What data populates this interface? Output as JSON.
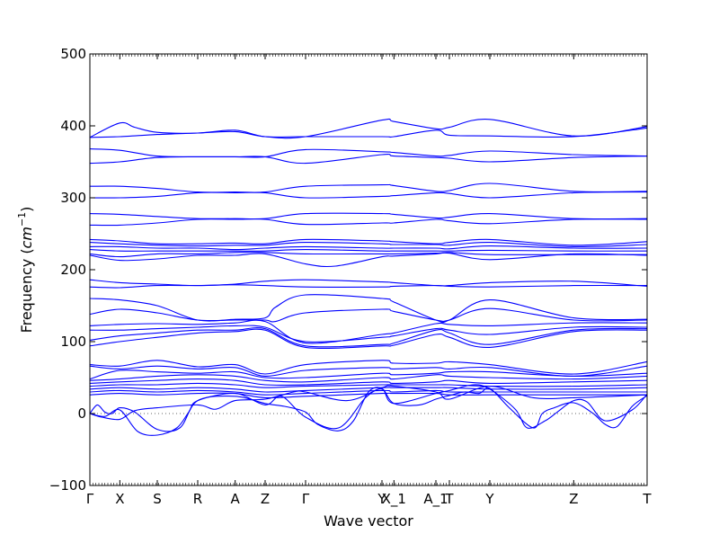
{
  "chart_data": {
    "type": "line",
    "title": "",
    "xlabel": "Wave vector",
    "ylabel": "Frequency ($cm^{-1}$)",
    "ylabel_parts": {
      "main": "Frequency (",
      "base": "cm",
      "sup": "−1",
      "close": ")"
    },
    "ylim": [
      -100,
      500
    ],
    "yticks": [
      -100,
      0,
      100,
      200,
      300,
      400,
      500
    ],
    "grid": false,
    "legend": "none",
    "line_color": "#0000ff",
    "zero_line_color": "#666666",
    "xlim": [
      0,
      18.6
    ],
    "high_symmetry_points": [
      {
        "label": "Γ",
        "x": 0
      },
      {
        "label": "X",
        "x": 1.0
      },
      {
        "label": "S",
        "x": 2.25
      },
      {
        "label": "R",
        "x": 3.6
      },
      {
        "label": "A",
        "x": 4.85
      },
      {
        "label": "Z",
        "x": 5.85
      },
      {
        "label": "Γ",
        "x": 7.2
      },
      {
        "label": "Y",
        "x": 9.75
      },
      {
        "label": "X_1",
        "x": 10.15
      },
      {
        "label": "A_1",
        "x": 11.55
      },
      {
        "label": "T",
        "x": 12.0
      },
      {
        "label": "Y",
        "x": 13.35
      },
      {
        "label": "Z",
        "x": 16.15
      },
      {
        "label": "T",
        "x": 18.6
      }
    ],
    "series": [
      {
        "x": [
          0,
          1,
          1.5,
          2.25,
          3.6,
          4.85,
          5.85,
          7.2,
          9.75,
          10.15,
          11.55,
          12,
          13.35,
          16.15,
          18.6
        ],
        "y": [
          384,
          404,
          398,
          391,
          390,
          394,
          385,
          385,
          408,
          406,
          396,
          398,
          409,
          386,
          399
        ]
      },
      {
        "x": [
          0,
          1,
          2.25,
          3.6,
          4.85,
          5.85,
          7.2,
          9.75,
          10.15,
          11.55,
          12,
          13.35,
          16.15,
          18.6
        ],
        "y": [
          384,
          385,
          388,
          390,
          392,
          385,
          385,
          385,
          385,
          394,
          387,
          386,
          385,
          397
        ]
      },
      {
        "x": [
          0,
          1,
          2.25,
          3.6,
          4.85,
          5.85,
          7.2,
          9.75,
          10.15,
          11.55,
          12,
          13.35,
          16.15,
          18.6
        ],
        "y": [
          368,
          366,
          358,
          357,
          357,
          357,
          367,
          364,
          363,
          358,
          359,
          365,
          360,
          358
        ]
      },
      {
        "x": [
          0,
          1,
          2.25,
          3.6,
          4.85,
          5.85,
          7.2,
          9.75,
          10.15,
          11.55,
          12,
          13.35,
          16.15,
          18.6
        ],
        "y": [
          348,
          350,
          356,
          357,
          357,
          357,
          348,
          360,
          358,
          356,
          355,
          350,
          356,
          358
        ]
      },
      {
        "x": [
          0,
          1,
          2.25,
          3.6,
          4.85,
          5.85,
          7.2,
          9.75,
          10.15,
          11.55,
          12,
          13.35,
          16.15,
          18.6
        ],
        "y": [
          316,
          316,
          313,
          308,
          308,
          308,
          316,
          318,
          317,
          309,
          310,
          320,
          309,
          309
        ]
      },
      {
        "x": [
          0,
          1,
          2.25,
          3.6,
          4.85,
          5.85,
          7.2,
          9.75,
          10.15,
          11.55,
          12,
          13.35,
          16.15,
          18.6
        ],
        "y": [
          300,
          300,
          302,
          307,
          307,
          307,
          300,
          302,
          303,
          307,
          306,
          300,
          307,
          308
        ]
      },
      {
        "x": [
          0,
          1,
          2.25,
          3.6,
          4.85,
          5.85,
          7.2,
          9.75,
          10.15,
          11.55,
          12,
          13.35,
          16.15,
          18.6
        ],
        "y": [
          278,
          277,
          274,
          271,
          271,
          271,
          278,
          278,
          277,
          272,
          273,
          278,
          271,
          271
        ]
      },
      {
        "x": [
          0,
          1,
          2.25,
          3.6,
          4.85,
          5.85,
          7.2,
          9.75,
          10.15,
          11.55,
          12,
          13.35,
          16.15,
          18.6
        ],
        "y": [
          262,
          262,
          265,
          270,
          270,
          270,
          263,
          265,
          265,
          270,
          268,
          264,
          270,
          270
        ]
      },
      {
        "x": [
          0,
          1,
          2.25,
          3.6,
          4.85,
          5.85,
          7.2,
          9.75,
          10.15,
          11.55,
          12,
          13.35,
          16.15,
          18.6
        ],
        "y": [
          242,
          240,
          236,
          236,
          237,
          236,
          242,
          240,
          239,
          236,
          238,
          242,
          234,
          239
        ]
      },
      {
        "x": [
          0,
          1,
          2.25,
          3.6,
          4.85,
          5.85,
          7.2,
          9.75,
          10.15,
          11.55,
          12,
          13.35,
          16.15,
          18.6
        ],
        "y": [
          238,
          236,
          234,
          233,
          234,
          234,
          238,
          236,
          235,
          235,
          234,
          238,
          232,
          235
        ]
      },
      {
        "x": [
          0,
          1,
          2.25,
          3.6,
          4.85,
          5.85,
          7.2,
          9.75,
          10.15,
          11.55,
          12,
          13.35,
          16.15,
          18.6
        ],
        "y": [
          232,
          232,
          230,
          230,
          228,
          230,
          232,
          230,
          230,
          230,
          229,
          233,
          230,
          230
        ]
      },
      {
        "x": [
          0,
          1,
          2.25,
          3.6,
          4.85,
          5.85,
          7.2,
          9.75,
          10.15,
          11.55,
          12,
          13.35,
          16.15,
          18.6
        ],
        "y": [
          228,
          226,
          226,
          226,
          226,
          226,
          228,
          226,
          226,
          226,
          226,
          227,
          226,
          226
        ]
      },
      {
        "x": [
          0,
          1,
          2.25,
          3.6,
          4.85,
          5.85,
          7.2,
          9.75,
          10.15,
          11.55,
          12,
          13.35,
          16.15,
          18.6
        ],
        "y": [
          222,
          218,
          222,
          222,
          224,
          224,
          222,
          222,
          222,
          223,
          224,
          221,
          221,
          221
        ]
      },
      {
        "x": [
          0,
          1,
          2.25,
          3.6,
          4.85,
          5.85,
          7.2,
          8.2,
          9.75,
          10.15,
          11.55,
          12,
          13.35,
          16.15,
          18.6
        ],
        "y": [
          220,
          213,
          215,
          220,
          220,
          222,
          208,
          205,
          218,
          219,
          222,
          223,
          214,
          222,
          220
        ]
      },
      {
        "x": [
          0,
          1,
          2.25,
          3.6,
          4.85,
          5.85,
          7.2,
          9.75,
          10.15,
          11.55,
          12,
          13.35,
          16.15,
          18.6
        ],
        "y": [
          186,
          182,
          180,
          178,
          180,
          184,
          186,
          183,
          182,
          178,
          178,
          182,
          184,
          177
        ]
      },
      {
        "x": [
          0,
          1,
          2.25,
          3.6,
          4.85,
          5.85,
          7.2,
          9.75,
          10.15,
          11.55,
          12,
          13.35,
          16.15,
          18.6
        ],
        "y": [
          176,
          175,
          178,
          178,
          179,
          178,
          176,
          176,
          177,
          178,
          177,
          176,
          178,
          178
        ]
      },
      {
        "x": [
          0,
          1,
          2.25,
          3.6,
          4.85,
          5.85,
          6.2,
          7.2,
          9.75,
          10.15,
          11.55,
          12,
          13.35,
          16.15,
          18.6
        ],
        "y": [
          160,
          158,
          150,
          130,
          131,
          133,
          148,
          165,
          160,
          155,
          130,
          130,
          158,
          133,
          131
        ]
      },
      {
        "x": [
          0,
          1,
          2.25,
          3.6,
          4.85,
          5.85,
          6.2,
          7.2,
          9.75,
          10.15,
          11.55,
          12,
          13.35,
          16.15,
          18.6
        ],
        "y": [
          138,
          145,
          140,
          130,
          130,
          130,
          128,
          140,
          145,
          142,
          130,
          130,
          146,
          130,
          130
        ]
      },
      {
        "x": [
          0,
          1,
          2.25,
          3.6,
          4.85,
          5.85,
          7.2,
          9.75,
          10.15,
          11.55,
          12,
          13.35,
          16.15,
          18.6
        ],
        "y": [
          122,
          124,
          125,
          124,
          126,
          128,
          98,
          110,
          112,
          125,
          124,
          122,
          126,
          126
        ]
      },
      {
        "x": [
          0,
          1,
          2.25,
          3.6,
          4.85,
          5.85,
          7.2,
          9.75,
          10.15,
          11.55,
          12,
          13.35,
          16.15,
          18.6
        ],
        "y": [
          116,
          116,
          118,
          120,
          122,
          120,
          100,
          106,
          108,
          118,
          116,
          110,
          120,
          120
        ]
      },
      {
        "x": [
          0,
          1,
          2.25,
          3.6,
          4.85,
          5.85,
          7.2,
          9.75,
          10.15,
          11.55,
          12,
          13.35,
          16.15,
          18.6
        ],
        "y": [
          102,
          108,
          112,
          116,
          116,
          118,
          94,
          96,
          98,
          116,
          112,
          96,
          116,
          118
        ]
      },
      {
        "x": [
          0,
          1,
          2.25,
          3.6,
          4.85,
          5.85,
          7.2,
          9.75,
          10.15,
          11.55,
          12,
          13.35,
          16.15,
          18.6
        ],
        "y": [
          94,
          100,
          106,
          112,
          114,
          116,
          92,
          94,
          95,
          110,
          106,
          92,
          114,
          116
        ]
      },
      {
        "x": [
          0,
          1,
          2.25,
          3.6,
          4.85,
          5.85,
          7.2,
          9.75,
          10.15,
          11.55,
          12,
          13.35,
          16.15,
          18.6
        ],
        "y": [
          68,
          66,
          74,
          65,
          68,
          55,
          68,
          74,
          70,
          70,
          72,
          68,
          55,
          72
        ]
      },
      {
        "x": [
          0,
          1,
          2.25,
          3.6,
          4.85,
          5.85,
          7.2,
          9.75,
          10.15,
          11.55,
          12,
          13.35,
          16.15,
          18.6
        ],
        "y": [
          66,
          62,
          66,
          62,
          64,
          52,
          60,
          64,
          62,
          64,
          62,
          64,
          52,
          66
        ]
      },
      {
        "x": [
          0,
          1,
          2.25,
          3.6,
          4.85,
          5.85,
          7.2,
          9.75,
          10.15,
          11.55,
          12,
          13.35,
          16.15,
          18.6
        ],
        "y": [
          48,
          60,
          58,
          56,
          58,
          50,
          50,
          56,
          54,
          56,
          58,
          58,
          52,
          56
        ]
      },
      {
        "x": [
          0,
          1,
          2.25,
          3.6,
          4.85,
          5.85,
          7.2,
          9.75,
          10.15,
          11.55,
          12,
          13.35,
          16.15,
          18.6
        ],
        "y": [
          46,
          48,
          52,
          54,
          52,
          46,
          44,
          50,
          48,
          54,
          52,
          50,
          48,
          52
        ]
      },
      {
        "x": [
          0,
          1,
          2.25,
          3.6,
          4.85,
          5.85,
          7.2,
          9.75,
          10.15,
          11.55,
          12,
          13.35,
          16.15,
          18.6
        ],
        "y": [
          42,
          44,
          46,
          48,
          46,
          40,
          40,
          44,
          42,
          44,
          46,
          42,
          44,
          46
        ]
      },
      {
        "x": [
          0,
          1,
          2.25,
          3.6,
          4.85,
          5.85,
          7.2,
          9.75,
          10.15,
          11.55,
          12,
          13.35,
          16.15,
          18.6
        ],
        "y": [
          38,
          40,
          40,
          42,
          40,
          36,
          38,
          40,
          40,
          40,
          40,
          38,
          38,
          40
        ]
      },
      {
        "x": [
          0,
          1,
          2.25,
          3.6,
          4.85,
          5.85,
          7.2,
          9.75,
          10.15,
          11.55,
          12,
          13.35,
          16.15,
          18.6
        ],
        "y": [
          34,
          36,
          34,
          36,
          34,
          30,
          32,
          36,
          36,
          36,
          36,
          34,
          34,
          36
        ]
      },
      {
        "x": [
          0,
          1,
          2.25,
          3.6,
          4.85,
          5.85,
          7.2,
          9.75,
          10.15,
          11.55,
          12,
          13.35,
          16.15,
          18.6
        ],
        "y": [
          30,
          32,
          30,
          32,
          30,
          26,
          28,
          32,
          30,
          32,
          30,
          30,
          30,
          30
        ]
      },
      {
        "x": [
          0,
          1,
          2.25,
          3.6,
          4.85,
          5.85,
          7.2,
          9.75,
          10.15,
          11.55,
          12,
          13.35,
          16.15,
          18.6
        ],
        "y": [
          26,
          28,
          26,
          28,
          28,
          22,
          24,
          28,
          28,
          28,
          26,
          26,
          26,
          26
        ]
      },
      {
        "x": [
          0,
          0.25,
          0.5,
          0.75,
          1,
          1.5,
          2.25,
          3,
          3.6,
          4.85,
          5.85,
          6.5,
          7.2,
          7.6,
          8.3,
          8.8,
          9.3,
          9.75,
          10.15,
          11,
          11.55,
          12,
          12.5,
          13,
          13.35,
          14,
          14.8,
          15.1,
          15.5,
          16.15,
          16.8,
          17.2,
          17.6,
          18.1,
          18.6
        ],
        "y": [
          0,
          12,
          2,
          0,
          8,
          2,
          -22,
          -20,
          18,
          24,
          14,
          10,
          2,
          -15,
          -24,
          -10,
          30,
          35,
          14,
          12,
          20,
          25,
          30,
          28,
          35,
          8,
          -20,
          0,
          8,
          15,
          0,
          -15,
          -18,
          10,
          25
        ]
      },
      {
        "x": [
          0,
          0.5,
          1,
          1.6,
          2.25,
          2.9,
          3.3,
          3.6,
          4.85,
          5.85,
          6.4,
          7.2,
          8.3,
          9.2,
          9.75,
          10.15,
          11.55,
          12,
          12.8,
          13.35,
          14.2,
          14.6,
          15.2,
          15.6,
          16.15,
          16.6,
          17.2,
          18.1,
          18.6
        ],
        "y": [
          0,
          -4,
          5,
          -25,
          -30,
          -20,
          2,
          18,
          28,
          12,
          24,
          -5,
          -20,
          22,
          34,
          14,
          28,
          32,
          40,
          34,
          6,
          -20,
          -10,
          2,
          18,
          16,
          -10,
          5,
          27
        ]
      },
      {
        "x": [
          0,
          0.4,
          1,
          1.5,
          2.25,
          3.6,
          4.2,
          4.85,
          5.85,
          6.8,
          7.2,
          8.6,
          9.75,
          10.15,
          11.55,
          12,
          13.35,
          14.8,
          16.15,
          18.6
        ],
        "y": [
          0,
          -5,
          -8,
          4,
          8,
          12,
          6,
          18,
          20,
          30,
          30,
          18,
          36,
          38,
          30,
          20,
          38,
          22,
          22,
          26
        ]
      }
    ]
  }
}
